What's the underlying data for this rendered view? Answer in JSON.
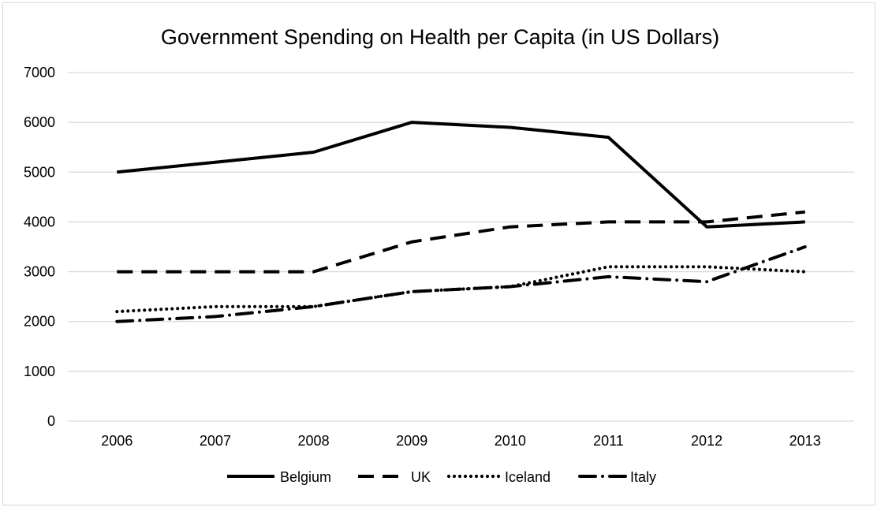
{
  "chart_data": {
    "type": "line",
    "title": "Government Spending on Health per Capita (in US Dollars)",
    "xlabel": "",
    "ylabel": "",
    "categories": [
      "2006",
      "2007",
      "2008",
      "2009",
      "2010",
      "2011",
      "2012",
      "2013"
    ],
    "y_ticks": [
      "0",
      "1000",
      "2000",
      "3000",
      "4000",
      "5000",
      "6000",
      "7000"
    ],
    "ylim": [
      0,
      7000
    ],
    "grid": "horizontal",
    "legend_position": "bottom",
    "series": [
      {
        "name": "Belgium",
        "values": [
          5000,
          5200,
          5400,
          6000,
          5900,
          5700,
          3900,
          4000
        ],
        "dash": "solid"
      },
      {
        "name": "UK",
        "values": [
          3000,
          3000,
          3000,
          3600,
          3900,
          4000,
          4000,
          4200
        ],
        "dash": "dash"
      },
      {
        "name": "Iceland",
        "values": [
          2200,
          2300,
          2300,
          2600,
          2700,
          3100,
          3100,
          3000
        ],
        "dash": "dot"
      },
      {
        "name": "Italy",
        "values": [
          2000,
          2100,
          2300,
          2600,
          2700,
          2900,
          2800,
          3500
        ],
        "dash": "dashdot"
      }
    ],
    "colors": {
      "line": "#000000",
      "grid": "#d9d9d9"
    }
  }
}
